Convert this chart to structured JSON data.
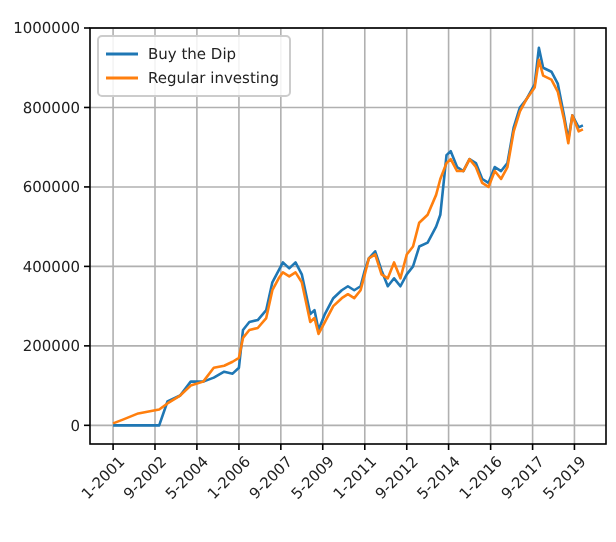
{
  "chart_data": {
    "type": "line",
    "legend": "top left",
    "grid": true,
    "x": [
      "2001-01",
      "2001-06",
      "2002-01",
      "2002-06",
      "2002-11",
      "2003-03",
      "2003-09",
      "2004-02",
      "2004-08",
      "2005-01",
      "2005-06",
      "2005-10",
      "2006-01",
      "2006-03",
      "2006-06",
      "2006-10",
      "2007-02",
      "2007-05",
      "2007-08",
      "2007-10",
      "2008-01",
      "2008-04",
      "2008-07",
      "2008-11",
      "2009-01",
      "2009-03",
      "2009-06",
      "2009-10",
      "2010-02",
      "2010-05",
      "2010-08",
      "2010-11",
      "2011-01",
      "2011-03",
      "2011-06",
      "2011-09",
      "2011-12",
      "2012-03",
      "2012-06",
      "2012-09",
      "2012-12",
      "2013-03",
      "2013-07",
      "2013-11",
      "2014-01",
      "2014-04",
      "2014-06",
      "2014-09",
      "2014-12",
      "2015-03",
      "2015-06",
      "2015-09",
      "2015-12",
      "2016-03",
      "2016-06",
      "2016-09",
      "2016-12",
      "2017-03",
      "2017-06",
      "2017-10",
      "2017-12",
      "2018-02",
      "2018-06",
      "2018-09",
      "2018-12",
      "2019-02",
      "2019-04",
      "2019-07",
      "2019-09"
    ],
    "xlim": [
      "2000-02",
      "2020-08"
    ],
    "xticks": [
      {
        "value": "2001-01",
        "label": "1-2001"
      },
      {
        "value": "2002-09",
        "label": "9-2002"
      },
      {
        "value": "2004-05",
        "label": "5-2004"
      },
      {
        "value": "2006-01",
        "label": "1-2006"
      },
      {
        "value": "2007-09",
        "label": "9-2007"
      },
      {
        "value": "2009-05",
        "label": "5-2009"
      },
      {
        "value": "2011-01",
        "label": "1-2011"
      },
      {
        "value": "2012-09",
        "label": "9-2012"
      },
      {
        "value": "2014-05",
        "label": "5-2014"
      },
      {
        "value": "2016-01",
        "label": "1-2016"
      },
      {
        "value": "2017-09",
        "label": "9-2017"
      },
      {
        "value": "2019-05",
        "label": "5-2019"
      }
    ],
    "ylim": [
      -47000,
      1000000
    ],
    "yticks": [
      0,
      200000,
      400000,
      600000,
      800000,
      1000000
    ],
    "series": [
      {
        "name": "Buy the Dip",
        "color": "#1f77b4",
        "values": [
          0,
          0,
          0,
          0,
          0,
          60000,
          75000,
          110000,
          110000,
          120000,
          135000,
          130000,
          145000,
          240000,
          260000,
          265000,
          290000,
          360000,
          390000,
          410000,
          395000,
          410000,
          380000,
          280000,
          290000,
          240000,
          280000,
          320000,
          340000,
          350000,
          340000,
          350000,
          390000,
          420000,
          438000,
          390000,
          350000,
          370000,
          350000,
          380000,
          400000,
          450000,
          460000,
          500000,
          530000,
          680000,
          690000,
          650000,
          640000,
          670000,
          660000,
          620000,
          610000,
          650000,
          640000,
          660000,
          750000,
          800000,
          820000,
          858000,
          950000,
          900000,
          890000,
          860000,
          780000,
          720000,
          780000,
          750000,
          755000
        ]
      },
      {
        "name": "Regular investing",
        "color": "#ff7f0e",
        "values": [
          5000,
          15000,
          30000,
          35000,
          40000,
          55000,
          75000,
          100000,
          110000,
          145000,
          150000,
          160000,
          170000,
          220000,
          240000,
          245000,
          270000,
          340000,
          370000,
          385000,
          375000,
          385000,
          360000,
          260000,
          270000,
          230000,
          260000,
          300000,
          320000,
          330000,
          320000,
          340000,
          380000,
          420000,
          430000,
          380000,
          370000,
          410000,
          370000,
          430000,
          450000,
          510000,
          530000,
          580000,
          620000,
          660000,
          670000,
          640000,
          640000,
          670000,
          650000,
          610000,
          600000,
          640000,
          620000,
          650000,
          740000,
          790000,
          820000,
          850000,
          920000,
          880000,
          870000,
          840000,
          770000,
          710000,
          780000,
          740000,
          745000
        ]
      }
    ]
  }
}
